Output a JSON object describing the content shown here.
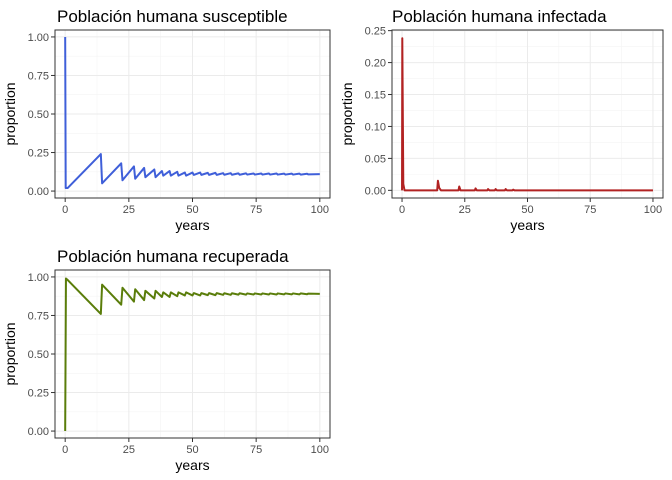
{
  "chart_data": [
    {
      "type": "line",
      "title": "Población humana susceptible",
      "xlabel": "years",
      "ylabel": "proportion",
      "xlim": [
        -4,
        104
      ],
      "ylim": [
        -0.045,
        1.045
      ],
      "xticks": [
        0,
        25,
        50,
        75,
        100
      ],
      "xtick_labels": [
        "0",
        "25",
        "50",
        "75",
        "100"
      ],
      "yticks": [
        0,
        0.25,
        0.5,
        0.75,
        1.0
      ],
      "ytick_labels": [
        "0.00",
        "0.25",
        "0.50",
        "0.75",
        "1.00"
      ],
      "grid": true,
      "color": "#3F5FD9",
      "series": [
        {
          "x": [
            0,
            0,
            0.2,
            1,
            14,
            14.5,
            22,
            22.5,
            27,
            27.5,
            31,
            31.5,
            35,
            35.5,
            38,
            38.5,
            41,
            41.5,
            44,
            44.5,
            47,
            47.5,
            50,
            50.5,
            53,
            53.5,
            56,
            56.5,
            59,
            59.5,
            62,
            62.5,
            65,
            65.5,
            68,
            68.5,
            71,
            71.5,
            74,
            74.5,
            77,
            77.5,
            80,
            80.5,
            83,
            83.5,
            86,
            86.5,
            89,
            89.5,
            92,
            92.5,
            95,
            95.5,
            100
          ],
          "y": [
            1.0,
            0.99,
            0.02,
            0.02,
            0.24,
            0.05,
            0.18,
            0.07,
            0.16,
            0.08,
            0.15,
            0.09,
            0.14,
            0.09,
            0.13,
            0.1,
            0.13,
            0.1,
            0.125,
            0.1,
            0.12,
            0.1,
            0.12,
            0.105,
            0.12,
            0.105,
            0.118,
            0.105,
            0.118,
            0.105,
            0.116,
            0.106,
            0.116,
            0.106,
            0.115,
            0.106,
            0.115,
            0.107,
            0.114,
            0.107,
            0.114,
            0.107,
            0.114,
            0.107,
            0.114,
            0.107,
            0.113,
            0.107,
            0.113,
            0.107,
            0.113,
            0.107,
            0.112,
            0.108,
            0.11
          ]
        }
      ]
    },
    {
      "type": "line",
      "title": "Población humana infectada",
      "xlabel": "years",
      "ylabel": "proportion",
      "xlim": [
        -4,
        104
      ],
      "ylim": [
        -0.012,
        0.251
      ],
      "xticks": [
        0,
        25,
        50,
        75,
        100
      ],
      "xtick_labels": [
        "0",
        "25",
        "50",
        "75",
        "100"
      ],
      "yticks": [
        0,
        0.05,
        0.1,
        0.15,
        0.2,
        0.25
      ],
      "ytick_labels": [
        "0.00",
        "0.05",
        "0.10",
        "0.15",
        "0.20",
        "0.25"
      ],
      "grid": true,
      "color": "#B22222",
      "series": [
        {
          "x": [
            0,
            0.1,
            0.5,
            1,
            14,
            14.3,
            14.8,
            15.5,
            22.5,
            22.8,
            23.3,
            29,
            29.3,
            29.8,
            34,
            34.3,
            34.8,
            37,
            37.3,
            37.8,
            41,
            41.3,
            41.8,
            44,
            44.3,
            44.8,
            100
          ],
          "y": [
            0.0,
            0.238,
            0.01,
            0.0,
            0.0,
            0.015,
            0.004,
            0.0,
            0.0,
            0.006,
            0.0,
            0.0,
            0.003,
            0.0,
            0.0,
            0.002,
            0.0,
            0.0,
            0.002,
            0.0,
            0.0,
            0.002,
            0.0,
            0.0,
            0.001,
            0.0,
            0.0
          ]
        }
      ]
    },
    {
      "type": "line",
      "title": "Población humana recuperada",
      "xlabel": "years",
      "ylabel": "proportion",
      "xlim": [
        -4,
        104
      ],
      "ylim": [
        -0.045,
        1.045
      ],
      "xticks": [
        0,
        25,
        50,
        75,
        100
      ],
      "xtick_labels": [
        "0",
        "25",
        "50",
        "75",
        "100"
      ],
      "yticks": [
        0,
        0.25,
        0.5,
        0.75,
        1.0
      ],
      "ytick_labels": [
        "0.00",
        "0.25",
        "0.50",
        "0.75",
        "1.00"
      ],
      "grid": true,
      "color": "#5A7D0A",
      "series": [
        {
          "x": [
            0,
            0,
            0.3,
            1,
            14,
            14.5,
            22,
            22.5,
            27,
            27.5,
            31,
            31.5,
            35,
            35.5,
            38,
            38.5,
            41,
            41.5,
            44,
            44.5,
            47,
            47.5,
            50,
            50.5,
            53,
            53.5,
            56,
            56.5,
            59,
            59.5,
            62,
            62.5,
            65,
            65.5,
            68,
            68.5,
            71,
            71.5,
            74,
            74.5,
            77,
            77.5,
            80,
            80.5,
            83,
            83.5,
            86,
            86.5,
            89,
            89.5,
            92,
            92.5,
            95,
            95.5,
            100
          ],
          "y": [
            0.0,
            0.01,
            0.99,
            0.98,
            0.76,
            0.95,
            0.82,
            0.93,
            0.84,
            0.92,
            0.85,
            0.91,
            0.86,
            0.91,
            0.87,
            0.9,
            0.87,
            0.9,
            0.875,
            0.9,
            0.88,
            0.9,
            0.88,
            0.895,
            0.88,
            0.895,
            0.882,
            0.895,
            0.882,
            0.895,
            0.884,
            0.894,
            0.884,
            0.894,
            0.885,
            0.894,
            0.885,
            0.893,
            0.886,
            0.893,
            0.886,
            0.893,
            0.886,
            0.893,
            0.886,
            0.893,
            0.887,
            0.893,
            0.887,
            0.893,
            0.887,
            0.893,
            0.888,
            0.892,
            0.89
          ]
        }
      ]
    }
  ]
}
